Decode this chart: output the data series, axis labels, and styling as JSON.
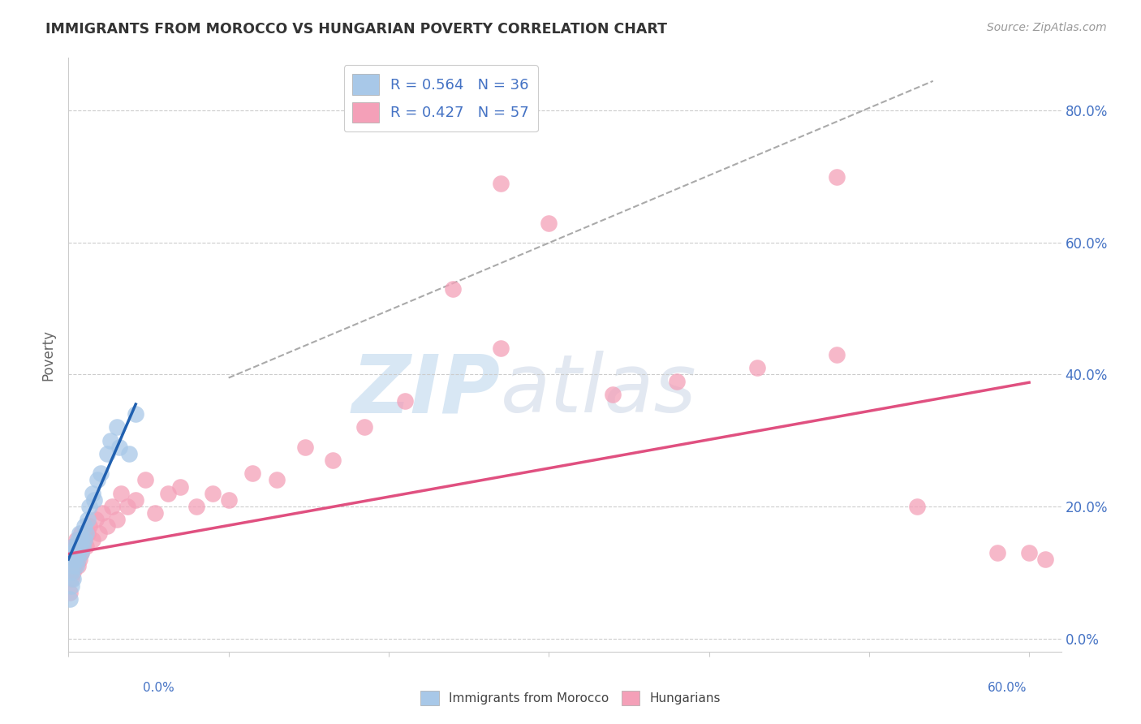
{
  "title": "IMMIGRANTS FROM MOROCCO VS HUNGARIAN POVERTY CORRELATION CHART",
  "source_text": "Source: ZipAtlas.com",
  "ylabel": "Poverty",
  "xlim": [
    0.0,
    0.62
  ],
  "ylim": [
    -0.02,
    0.88
  ],
  "ytick_vals": [
    0.0,
    0.2,
    0.4,
    0.6,
    0.8
  ],
  "ytick_labels_right": [
    "0.0%",
    "20.0%",
    "40.0%",
    "60.0%",
    "80.0%"
  ],
  "xtick_vals": [
    0.0,
    0.1,
    0.2,
    0.3,
    0.4,
    0.5,
    0.6
  ],
  "legend_r1": "R = 0.564",
  "legend_n1": "N = 36",
  "legend_r2": "R = 0.427",
  "legend_n2": "N = 57",
  "color_blue": "#a8c8e8",
  "color_pink": "#f4a0b8",
  "color_line_blue": "#2060b0",
  "color_line_pink": "#e05080",
  "color_grid": "#cccccc",
  "color_title": "#333333",
  "color_source": "#999999",
  "color_axis_labels": "#4472c4",
  "watermark_zip": "ZIP",
  "watermark_atlas": "atlas",
  "blue_line_x0": 0.0,
  "blue_line_y0": 0.12,
  "blue_line_x1": 0.042,
  "blue_line_y1": 0.355,
  "pink_line_x0": 0.0,
  "pink_line_y0": 0.128,
  "pink_line_x1": 0.6,
  "pink_line_y1": 0.388,
  "dash_line_x0": 0.1,
  "dash_line_y0": 0.395,
  "dash_line_x1": 0.54,
  "dash_line_y1": 0.845,
  "blue_scatter_x": [
    0.001,
    0.001,
    0.002,
    0.002,
    0.002,
    0.003,
    0.003,
    0.003,
    0.004,
    0.004,
    0.005,
    0.005,
    0.005,
    0.006,
    0.006,
    0.006,
    0.007,
    0.007,
    0.008,
    0.008,
    0.009,
    0.01,
    0.01,
    0.011,
    0.012,
    0.013,
    0.015,
    0.016,
    0.018,
    0.02,
    0.024,
    0.026,
    0.03,
    0.032,
    0.038,
    0.042
  ],
  "blue_scatter_y": [
    0.12,
    0.06,
    0.08,
    0.1,
    0.13,
    0.11,
    0.09,
    0.14,
    0.12,
    0.13,
    0.11,
    0.14,
    0.13,
    0.12,
    0.15,
    0.13,
    0.14,
    0.16,
    0.13,
    0.15,
    0.14,
    0.15,
    0.17,
    0.16,
    0.18,
    0.2,
    0.22,
    0.21,
    0.24,
    0.25,
    0.28,
    0.3,
    0.32,
    0.29,
    0.28,
    0.34
  ],
  "pink_scatter_x": [
    0.001,
    0.001,
    0.002,
    0.002,
    0.003,
    0.003,
    0.004,
    0.004,
    0.005,
    0.005,
    0.006,
    0.006,
    0.007,
    0.007,
    0.008,
    0.008,
    0.009,
    0.01,
    0.011,
    0.012,
    0.013,
    0.015,
    0.017,
    0.019,
    0.021,
    0.024,
    0.027,
    0.03,
    0.033,
    0.037,
    0.042,
    0.048,
    0.054,
    0.062,
    0.07,
    0.08,
    0.09,
    0.1,
    0.115,
    0.13,
    0.148,
    0.165,
    0.185,
    0.21,
    0.24,
    0.27,
    0.3,
    0.34,
    0.38,
    0.43,
    0.48,
    0.53,
    0.58,
    0.6,
    0.61,
    0.27,
    0.48
  ],
  "pink_scatter_y": [
    0.13,
    0.07,
    0.09,
    0.12,
    0.1,
    0.14,
    0.11,
    0.13,
    0.12,
    0.15,
    0.13,
    0.11,
    0.14,
    0.12,
    0.16,
    0.13,
    0.14,
    0.15,
    0.14,
    0.16,
    0.17,
    0.15,
    0.18,
    0.16,
    0.19,
    0.17,
    0.2,
    0.18,
    0.22,
    0.2,
    0.21,
    0.24,
    0.19,
    0.22,
    0.23,
    0.2,
    0.22,
    0.21,
    0.25,
    0.24,
    0.29,
    0.27,
    0.32,
    0.36,
    0.53,
    0.44,
    0.63,
    0.37,
    0.39,
    0.41,
    0.43,
    0.2,
    0.13,
    0.13,
    0.12,
    0.69,
    0.7
  ]
}
